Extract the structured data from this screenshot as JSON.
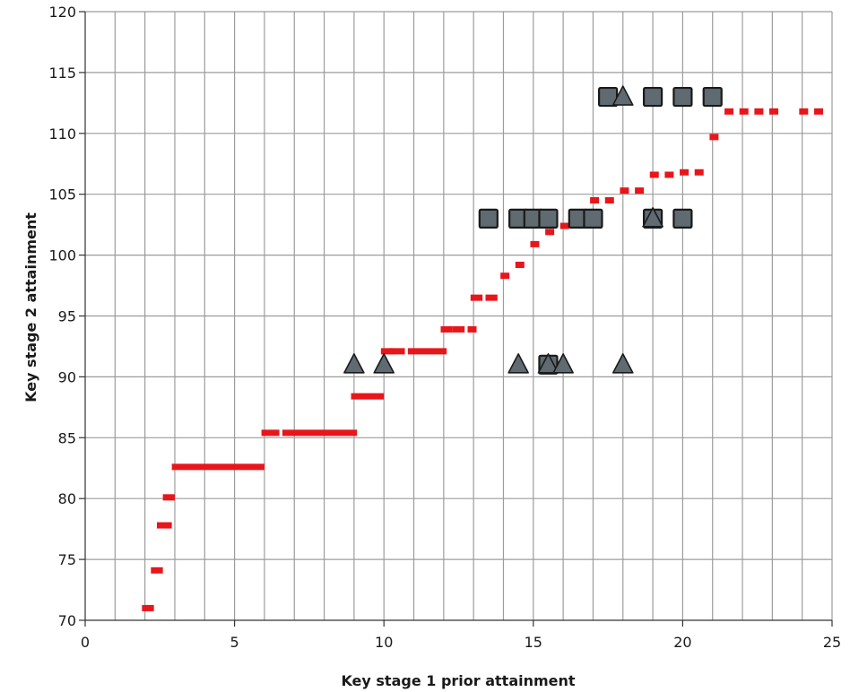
{
  "chart_data": {
    "type": "scatter",
    "xlabel": "Key stage 1 prior attainment",
    "ylabel": "Key stage 2 attainment",
    "xlim": [
      0,
      25
    ],
    "ylim": [
      70,
      120
    ],
    "x_ticks": [
      0,
      5,
      10,
      15,
      20,
      25
    ],
    "y_ticks": [
      70,
      75,
      80,
      85,
      90,
      95,
      100,
      105,
      110,
      115,
      120
    ],
    "grid": true,
    "legend": "none",
    "colors": {
      "reference": "#e8161b",
      "marker_fill": "#5f6a71",
      "marker_stroke": "#1a1a1a",
      "grid": "#9c9c9c"
    },
    "reference_segments": [
      {
        "x0": 1.9,
        "x1": 2.3,
        "y": 71.0
      },
      {
        "x0": 2.2,
        "x1": 2.6,
        "y": 74.1
      },
      {
        "x0": 2.4,
        "x1": 2.9,
        "y": 77.8
      },
      {
        "x0": 2.6,
        "x1": 3.0,
        "y": 80.1
      },
      {
        "x0": 2.9,
        "x1": 6.0,
        "y": 82.6
      },
      {
        "x0": 5.9,
        "x1": 6.5,
        "y": 85.4
      },
      {
        "x0": 6.6,
        "x1": 9.1,
        "y": 85.4
      },
      {
        "x0": 8.9,
        "x1": 10.0,
        "y": 88.4
      },
      {
        "x0": 9.9,
        "x1": 10.3,
        "y": 92.1
      },
      {
        "x0": 10.2,
        "x1": 10.7,
        "y": 92.1
      },
      {
        "x0": 10.8,
        "x1": 12.1,
        "y": 92.1
      },
      {
        "x0": 11.9,
        "x1": 12.3,
        "y": 93.9
      },
      {
        "x0": 12.3,
        "x1": 12.7,
        "y": 93.9
      },
      {
        "x0": 12.8,
        "x1": 13.1,
        "y": 93.9
      },
      {
        "x0": 12.9,
        "x1": 13.3,
        "y": 96.5
      },
      {
        "x0": 13.4,
        "x1": 13.8,
        "y": 96.5
      },
      {
        "x0": 13.9,
        "x1": 14.2,
        "y": 98.3
      },
      {
        "x0": 14.4,
        "x1": 14.7,
        "y": 99.2
      },
      {
        "x0": 14.9,
        "x1": 15.2,
        "y": 100.9
      },
      {
        "x0": 15.4,
        "x1": 15.7,
        "y": 101.9
      },
      {
        "x0": 15.9,
        "x1": 16.2,
        "y": 102.4
      },
      {
        "x0": 16.9,
        "x1": 17.2,
        "y": 104.5
      },
      {
        "x0": 17.4,
        "x1": 17.7,
        "y": 104.5
      },
      {
        "x0": 17.9,
        "x1": 18.2,
        "y": 105.3
      },
      {
        "x0": 18.4,
        "x1": 18.7,
        "y": 105.3
      },
      {
        "x0": 18.9,
        "x1": 19.2,
        "y": 106.6
      },
      {
        "x0": 19.4,
        "x1": 19.7,
        "y": 106.6
      },
      {
        "x0": 19.9,
        "x1": 20.2,
        "y": 106.8
      },
      {
        "x0": 20.4,
        "x1": 20.7,
        "y": 106.8
      },
      {
        "x0": 20.9,
        "x1": 21.2,
        "y": 109.7
      },
      {
        "x0": 21.4,
        "x1": 21.7,
        "y": 111.8
      },
      {
        "x0": 21.9,
        "x1": 22.2,
        "y": 111.8
      },
      {
        "x0": 22.4,
        "x1": 22.7,
        "y": 111.8
      },
      {
        "x0": 22.9,
        "x1": 23.2,
        "y": 111.8
      },
      {
        "x0": 23.9,
        "x1": 24.2,
        "y": 111.8
      },
      {
        "x0": 24.4,
        "x1": 24.7,
        "y": 111.8
      }
    ],
    "series": [
      {
        "marker": "square",
        "points": [
          {
            "x": 17.5,
            "y": 113
          },
          {
            "x": 19.0,
            "y": 113
          },
          {
            "x": 20.0,
            "y": 113
          },
          {
            "x": 21.0,
            "y": 113
          },
          {
            "x": 13.5,
            "y": 103
          },
          {
            "x": 14.5,
            "y": 103
          },
          {
            "x": 15.0,
            "y": 103
          },
          {
            "x": 15.5,
            "y": 103
          },
          {
            "x": 16.5,
            "y": 103
          },
          {
            "x": 17.0,
            "y": 103
          },
          {
            "x": 19.0,
            "y": 103
          },
          {
            "x": 20.0,
            "y": 103
          },
          {
            "x": 15.5,
            "y": 91
          }
        ]
      },
      {
        "marker": "triangle",
        "points": [
          {
            "x": 18.0,
            "y": 113
          },
          {
            "x": 19.0,
            "y": 103
          },
          {
            "x": 9.0,
            "y": 91
          },
          {
            "x": 10.0,
            "y": 91
          },
          {
            "x": 14.5,
            "y": 91
          },
          {
            "x": 15.5,
            "y": 91
          },
          {
            "x": 16.0,
            "y": 91
          },
          {
            "x": 18.0,
            "y": 91
          }
        ]
      }
    ]
  }
}
